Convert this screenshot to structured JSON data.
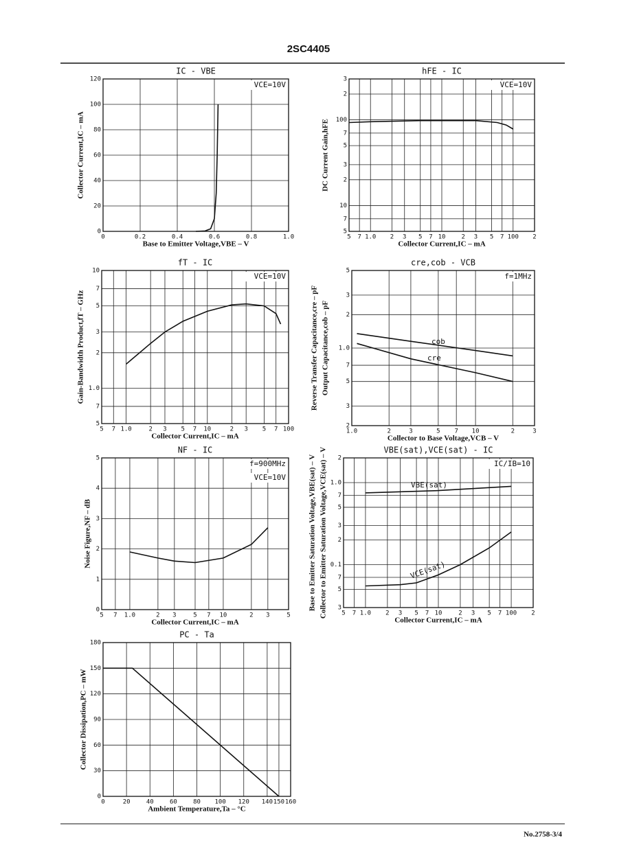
{
  "header": "2SC4405",
  "footer": "No.2758-3/4",
  "chart_data": [
    {
      "type": "line",
      "title": "IC - VBE",
      "xlabel": "Base to Emitter Voltage,VBE – V",
      "ylabel": "Collector Current,IC – mA",
      "annotations": [
        "VCE=10V"
      ],
      "grid": true,
      "xlog": false,
      "ylog": false,
      "xlim": [
        0,
        1
      ],
      "ylim": [
        0,
        120
      ],
      "xticks": [
        0,
        0.2,
        0.4,
        0.6,
        0.8,
        {
          "value": 1,
          "label": "1.0"
        }
      ],
      "yticks": [
        0,
        20,
        40,
        60,
        80,
        100,
        120
      ],
      "series": [
        {
          "color": "#111",
          "x": [
            0.5,
            0.55,
            0.58,
            0.6,
            0.61,
            0.615,
            0.62
          ],
          "values": [
            0,
            0.3,
            2,
            10,
            30,
            60,
            100
          ]
        }
      ]
    },
    {
      "type": "line",
      "title": "hFE - IC",
      "xlabel": "Collector Current,IC – mA",
      "ylabel": "DC Current Gain,hFE",
      "annotations": [
        "VCE=10V"
      ],
      "grid": true,
      "xlog": true,
      "ylog": true,
      "xlim": [
        0.5,
        200
      ],
      "ylim": [
        5,
        300
      ],
      "xticks": [
        {
          "value": 0.5,
          "label": "5"
        },
        {
          "value": 0.7,
          "label": "7"
        },
        {
          "value": 1,
          "label": "1.0"
        },
        2,
        3,
        5,
        7,
        10,
        {
          "value": 20,
          "label": "2"
        },
        {
          "value": 30,
          "label": "3"
        },
        {
          "value": 50,
          "label": "5"
        },
        {
          "value": 70,
          "label": "7"
        },
        100,
        {
          "value": 200,
          "label": "2"
        }
      ],
      "yticks": [
        5,
        7,
        10,
        {
          "value": 20,
          "label": "2"
        },
        {
          "value": 30,
          "label": "3"
        },
        {
          "value": 50,
          "label": "5"
        },
        {
          "value": 70,
          "label": "7"
        },
        100,
        {
          "value": 200,
          "label": "2"
        },
        {
          "value": 300,
          "label": "3"
        }
      ],
      "series": [
        {
          "color": "#111",
          "x": [
            0.5,
            1,
            5,
            30,
            60,
            80,
            100
          ],
          "values": [
            93,
            95,
            98,
            98,
            93,
            87,
            78
          ]
        }
      ]
    },
    {
      "type": "line",
      "title": "fT - IC",
      "xlabel": "Collector Current,IC – mA",
      "ylabel": "Gain-Bandwidth Product,fT – GHz",
      "annotations": [
        "VCE=10V"
      ],
      "grid": true,
      "xlog": true,
      "ylog": true,
      "xlim": [
        0.5,
        100
      ],
      "ylim": [
        0.5,
        10
      ],
      "xticks": [
        {
          "value": 0.5,
          "label": "5"
        },
        {
          "value": 0.7,
          "label": "7"
        },
        {
          "value": 1,
          "label": "1.0"
        },
        2,
        3,
        5,
        7,
        10,
        {
          "value": 20,
          "label": "2"
        },
        {
          "value": 30,
          "label": "3"
        },
        {
          "value": 50,
          "label": "5"
        },
        {
          "value": 70,
          "label": "7"
        },
        100
      ],
      "yticks": [
        {
          "value": 0.5,
          "label": "5"
        },
        {
          "value": 0.7,
          "label": "7"
        },
        {
          "value": 1,
          "label": "1.0"
        },
        2,
        3,
        5,
        7,
        10
      ],
      "series": [
        {
          "color": "#111",
          "x": [
            1,
            2,
            3,
            5,
            10,
            20,
            30,
            50,
            70,
            80
          ],
          "values": [
            1.6,
            2.4,
            3,
            3.7,
            4.5,
            5.1,
            5.2,
            5,
            4.3,
            3.5
          ]
        }
      ]
    },
    {
      "type": "line",
      "title": "cre,cob - VCB",
      "xlabel": "Collector to Base Voltage,VCB – V",
      "ylabel": [
        "Reverse Transfer Capacitance,cre – pF",
        "Output Capacitance,cob – pF"
      ],
      "annotations": [
        "f=1MHz"
      ],
      "grid": true,
      "xlog": true,
      "ylog": true,
      "xlim": [
        1,
        30
      ],
      "ylim": [
        0.2,
        5
      ],
      "xticks": [
        {
          "value": 1,
          "label": "1.0"
        },
        2,
        3,
        5,
        7,
        10,
        {
          "value": 20,
          "label": "2"
        },
        {
          "value": 30,
          "label": "3"
        }
      ],
      "yticks": [
        {
          "value": 0.2,
          "label": "2"
        },
        {
          "value": 0.3,
          "label": "3"
        },
        {
          "value": 0.5,
          "label": "5"
        },
        {
          "value": 0.7,
          "label": "7"
        },
        {
          "value": 1,
          "label": "1.0"
        },
        2,
        3,
        5
      ],
      "series": [
        {
          "name": "cob",
          "color": "#111",
          "x": [
            1.1,
            3,
            10,
            20
          ],
          "values": [
            1.35,
            1.15,
            0.95,
            0.85
          ]
        },
        {
          "name": "cre",
          "color": "#111",
          "x": [
            1.1,
            3,
            10,
            20
          ],
          "values": [
            1.1,
            0.8,
            0.6,
            0.5
          ]
        }
      ]
    },
    {
      "type": "line",
      "title": "NF - IC",
      "xlabel": "Collector Current,IC – mA",
      "ylabel": "Noise Figure,NF – dB",
      "annotations": [
        "f=900MHz",
        "VCE=10V"
      ],
      "grid": true,
      "xlog": true,
      "ylog": false,
      "xlim": [
        0.5,
        50
      ],
      "ylim": [
        0,
        5
      ],
      "xticks": [
        {
          "value": 0.5,
          "label": "5"
        },
        {
          "value": 0.7,
          "label": "7"
        },
        {
          "value": 1,
          "label": "1.0"
        },
        2,
        3,
        5,
        7,
        10,
        {
          "value": 20,
          "label": "2"
        },
        {
          "value": 30,
          "label": "3"
        },
        {
          "value": 50,
          "label": "5"
        }
      ],
      "yticks": [
        0,
        1,
        2,
        3,
        4,
        5
      ],
      "series": [
        {
          "color": "#111",
          "x": [
            1,
            2,
            3,
            5,
            10,
            20,
            30
          ],
          "values": [
            1.9,
            1.7,
            1.6,
            1.55,
            1.7,
            2.15,
            2.7
          ]
        }
      ]
    },
    {
      "type": "line",
      "title": "VBE(sat),VCE(sat) - IC",
      "xlabel": "Collector Current,IC – mA",
      "ylabel": [
        "Base to Emitter Saturation Voltage,VBE(sat) – V",
        "Collector to Emitter Saturation Voltage,VCE(sat) – V"
      ],
      "annotations": [
        "IC/IB=10"
      ],
      "grid": true,
      "xlog": true,
      "ylog": true,
      "xlim": [
        0.5,
        200
      ],
      "ylim": [
        0.03,
        2
      ],
      "xticks": [
        {
          "value": 0.5,
          "label": "5"
        },
        {
          "value": 0.7,
          "label": "7"
        },
        {
          "value": 1,
          "label": "1.0"
        },
        2,
        3,
        5,
        7,
        10,
        {
          "value": 20,
          "label": "2"
        },
        {
          "value": 30,
          "label": "3"
        },
        {
          "value": 50,
          "label": "5"
        },
        {
          "value": 70,
          "label": "7"
        },
        100,
        {
          "value": 200,
          "label": "2"
        }
      ],
      "yticks": [
        {
          "value": 0.03,
          "label": "3"
        },
        {
          "value": 0.05,
          "label": "5"
        },
        {
          "value": 0.07,
          "label": "7"
        },
        0.1,
        {
          "value": 0.2,
          "label": "2"
        },
        {
          "value": 0.3,
          "label": "3"
        },
        {
          "value": 0.5,
          "label": "5"
        },
        {
          "value": 0.7,
          "label": "7"
        },
        {
          "value": 1,
          "label": "1.0"
        },
        2
      ],
      "series": [
        {
          "name": "VBE(sat)",
          "color": "#111",
          "x": [
            1,
            10,
            100
          ],
          "values": [
            0.75,
            0.8,
            0.9
          ]
        },
        {
          "name": "VCE(sat)",
          "color": "#111",
          "x": [
            1,
            3,
            5,
            10,
            20,
            50,
            100
          ],
          "values": [
            0.055,
            0.057,
            0.06,
            0.075,
            0.1,
            0.16,
            0.25
          ]
        }
      ]
    },
    {
      "type": "line",
      "title": "PC - Ta",
      "xlabel": "Ambient Temperature,Ta – °C",
      "ylabel": "Collector Dissipation,PC – mW",
      "annotations": [],
      "grid": true,
      "xlog": false,
      "ylog": false,
      "xlim": [
        0,
        160
      ],
      "ylim": [
        0,
        180
      ],
      "xticks": [
        0,
        20,
        40,
        60,
        80,
        100,
        120,
        140,
        150,
        160
      ],
      "yticks": [
        0,
        30,
        60,
        90,
        120,
        150,
        180
      ],
      "series": [
        {
          "color": "#111",
          "x": [
            0,
            25,
            150
          ],
          "values": [
            150,
            150,
            0
          ]
        }
      ]
    }
  ]
}
